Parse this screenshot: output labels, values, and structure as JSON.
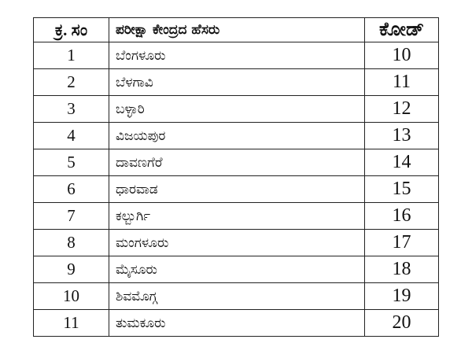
{
  "table": {
    "header": [
      "ಕ್ರ. ಸಂ",
      "ಪರೀಕ್ಷಾ ಕೇಂದ್ರದ ಹೆಸರು",
      "ಕೋಡ್"
    ],
    "rows": [
      [
        "1",
        "ಬೆಂಗಳೂರು",
        "10"
      ],
      [
        "2",
        "ಬೆಳಗಾವಿ",
        "11"
      ],
      [
        "3",
        "ಬಳ್ಳಾರಿ",
        "12"
      ],
      [
        "4",
        "ವಿಜಯಪುರ",
        "13"
      ],
      [
        "5",
        "ದಾವಣಗೆರೆ",
        "14"
      ],
      [
        "6",
        "ಧಾರವಾಡ",
        "15"
      ],
      [
        "7",
        "ಕಲ್ಬುರ್ಗಿ",
        "16"
      ],
      [
        "8",
        "ಮಂಗಳೂರು",
        "17"
      ],
      [
        "9",
        "ಮೈಸೂರು",
        "18"
      ],
      [
        "10",
        "ಶಿವಮೊಗ್ಗ",
        "19"
      ],
      [
        "11",
        "ತುಮಕೂರು",
        "20"
      ]
    ]
  }
}
